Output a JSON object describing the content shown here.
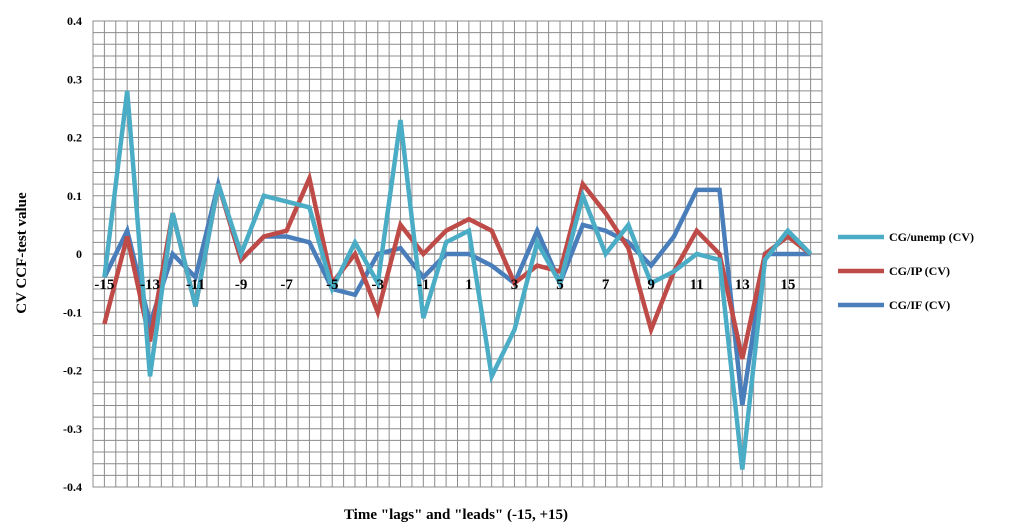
{
  "chart_data": {
    "type": "line",
    "title": "",
    "xlabel": "Time \"lags\" and \"leads\" (-15, +15)",
    "ylabel": "CV CCF-test value",
    "x": [
      -15,
      -14,
      -13,
      -12,
      -11,
      -10,
      -9,
      -8,
      -7,
      -6,
      -5,
      -4,
      -3,
      -2,
      -1,
      0,
      1,
      2,
      3,
      4,
      5,
      6,
      7,
      8,
      9,
      10,
      11,
      12,
      13,
      14,
      15,
      16
    ],
    "x_tick_labels": [
      "-15",
      "-13",
      "-11",
      "-9",
      "-7",
      "-5",
      "-3",
      "-1",
      "1",
      "3",
      "5",
      "7",
      "9",
      "11",
      "13",
      "15"
    ],
    "x_tick_values": [
      -15,
      -13,
      -11,
      -9,
      -7,
      -5,
      -3,
      -1,
      1,
      3,
      5,
      7,
      9,
      11,
      13,
      15
    ],
    "ylim": [
      -0.4,
      0.4
    ],
    "y_ticks": [
      0.4,
      0.3,
      0.2,
      0.1,
      0,
      -0.1,
      -0.2,
      -0.3,
      -0.4
    ],
    "y_tick_labels": [
      "0.4",
      "0.3",
      "0.2",
      "0.1",
      "0",
      "-0.1",
      "-0.2",
      "-0.3",
      "-0.4"
    ],
    "grid": true,
    "legend_position": "right",
    "series": [
      {
        "name": "CG/IF (CV)",
        "color": "#4a7ebb",
        "values": [
          -0.04,
          0.04,
          -0.12,
          0.0,
          -0.04,
          0.12,
          -0.01,
          0.03,
          0.03,
          0.02,
          -0.06,
          -0.07,
          0.0,
          0.01,
          -0.04,
          0.0,
          0.0,
          -0.02,
          -0.05,
          0.04,
          -0.05,
          0.05,
          0.04,
          0.02,
          -0.02,
          0.03,
          0.11,
          0.11,
          -0.26,
          0.0,
          0.0,
          0.0
        ]
      },
      {
        "name": "CG/IP (CV)",
        "color": "#be4b48",
        "values": [
          -0.12,
          0.03,
          -0.15,
          0.07,
          -0.09,
          0.12,
          -0.01,
          0.03,
          0.04,
          0.13,
          -0.05,
          0.0,
          -0.1,
          0.05,
          0.0,
          0.04,
          0.06,
          0.04,
          -0.05,
          -0.02,
          -0.03,
          0.12,
          0.07,
          0.01,
          -0.13,
          -0.03,
          0.04,
          0.0,
          -0.18,
          0.0,
          0.03,
          0.0
        ]
      },
      {
        "name": "CG/unemp (CV)",
        "color": "#4bacc6",
        "values": [
          -0.04,
          0.28,
          -0.21,
          0.07,
          -0.09,
          0.12,
          0.0,
          0.1,
          0.09,
          0.08,
          -0.06,
          0.02,
          -0.05,
          0.23,
          -0.11,
          0.02,
          0.04,
          -0.21,
          -0.13,
          0.02,
          -0.05,
          0.1,
          0.0,
          0.05,
          -0.05,
          -0.03,
          0.0,
          -0.01,
          -0.37,
          -0.01,
          0.04,
          0.0
        ]
      }
    ],
    "legend_order": [
      "CG/unemp (CV)",
      "CG/IP (CV)",
      "CG/IF (CV)"
    ]
  }
}
